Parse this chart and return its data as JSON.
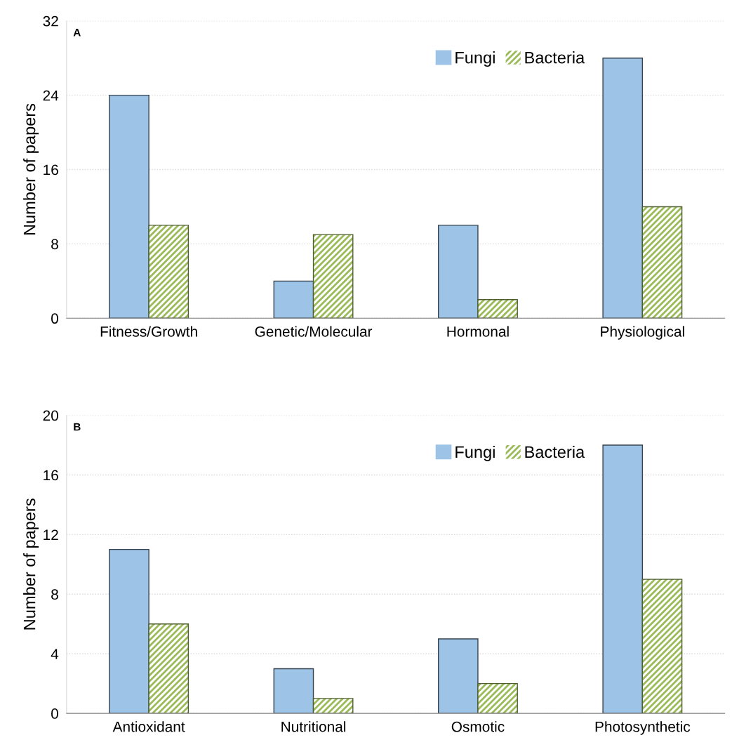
{
  "chart_data": [
    {
      "type": "bar",
      "ylabel": "Number of papers",
      "categories": [
        "Fitness/Growth",
        "Genetic/Molecular",
        "Hormonal",
        "Physiological"
      ],
      "ylim": [
        0,
        32
      ],
      "yticks": [
        0,
        8,
        16,
        24,
        32
      ],
      "grid": "y",
      "legend": "top right",
      "annotations": [
        "A"
      ],
      "series": [
        {
          "name": "Fungi",
          "color": "#9dc3e6",
          "values": [
            24,
            4,
            10,
            28
          ]
        },
        {
          "name": "Bacteria",
          "color": "#9bbb59",
          "values": [
            10,
            9,
            2,
            12
          ]
        }
      ]
    },
    {
      "type": "bar",
      "ylabel": "Number of papers",
      "categories": [
        "Antioxidant",
        "Nutritional",
        "Osmotic",
        "Photosynthetic"
      ],
      "ylim": [
        0,
        20
      ],
      "yticks": [
        0,
        4,
        8,
        12,
        16,
        20
      ],
      "grid": "y",
      "legend": "top right",
      "annotations": [
        "B"
      ],
      "series": [
        {
          "name": "Fungi",
          "color": "#9dc3e6",
          "values": [
            11,
            3,
            5,
            18
          ]
        },
        {
          "name": "Bacteria",
          "color": "#9bbb59",
          "values": [
            6,
            1,
            2,
            9
          ]
        }
      ]
    }
  ]
}
